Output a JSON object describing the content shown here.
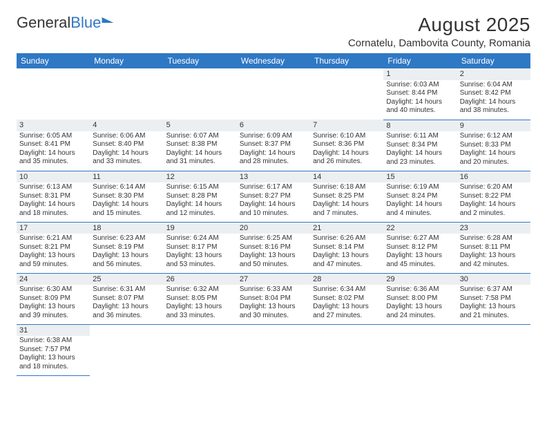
{
  "logo": {
    "part1": "General",
    "part2": "Blue"
  },
  "title": "August 2025",
  "location": "Cornatelu, Dambovita County, Romania",
  "colors": {
    "header_bg": "#2f78c4",
    "header_fg": "#ffffff",
    "shade_bg": "#eceff1",
    "rule": "#2f78c4"
  },
  "daynames": [
    "Sunday",
    "Monday",
    "Tuesday",
    "Wednesday",
    "Thursday",
    "Friday",
    "Saturday"
  ],
  "weeks": [
    [
      null,
      null,
      null,
      null,
      null,
      {
        "n": "1",
        "sr": "Sunrise: 6:03 AM",
        "ss": "Sunset: 8:44 PM",
        "d1": "Daylight: 14 hours",
        "d2": "and 40 minutes."
      },
      {
        "n": "2",
        "sr": "Sunrise: 6:04 AM",
        "ss": "Sunset: 8:42 PM",
        "d1": "Daylight: 14 hours",
        "d2": "and 38 minutes."
      }
    ],
    [
      {
        "n": "3",
        "sr": "Sunrise: 6:05 AM",
        "ss": "Sunset: 8:41 PM",
        "d1": "Daylight: 14 hours",
        "d2": "and 35 minutes."
      },
      {
        "n": "4",
        "sr": "Sunrise: 6:06 AM",
        "ss": "Sunset: 8:40 PM",
        "d1": "Daylight: 14 hours",
        "d2": "and 33 minutes."
      },
      {
        "n": "5",
        "sr": "Sunrise: 6:07 AM",
        "ss": "Sunset: 8:38 PM",
        "d1": "Daylight: 14 hours",
        "d2": "and 31 minutes."
      },
      {
        "n": "6",
        "sr": "Sunrise: 6:09 AM",
        "ss": "Sunset: 8:37 PM",
        "d1": "Daylight: 14 hours",
        "d2": "and 28 minutes."
      },
      {
        "n": "7",
        "sr": "Sunrise: 6:10 AM",
        "ss": "Sunset: 8:36 PM",
        "d1": "Daylight: 14 hours",
        "d2": "and 26 minutes."
      },
      {
        "n": "8",
        "sr": "Sunrise: 6:11 AM",
        "ss": "Sunset: 8:34 PM",
        "d1": "Daylight: 14 hours",
        "d2": "and 23 minutes."
      },
      {
        "n": "9",
        "sr": "Sunrise: 6:12 AM",
        "ss": "Sunset: 8:33 PM",
        "d1": "Daylight: 14 hours",
        "d2": "and 20 minutes."
      }
    ],
    [
      {
        "n": "10",
        "sr": "Sunrise: 6:13 AM",
        "ss": "Sunset: 8:31 PM",
        "d1": "Daylight: 14 hours",
        "d2": "and 18 minutes."
      },
      {
        "n": "11",
        "sr": "Sunrise: 6:14 AM",
        "ss": "Sunset: 8:30 PM",
        "d1": "Daylight: 14 hours",
        "d2": "and 15 minutes."
      },
      {
        "n": "12",
        "sr": "Sunrise: 6:15 AM",
        "ss": "Sunset: 8:28 PM",
        "d1": "Daylight: 14 hours",
        "d2": "and 12 minutes."
      },
      {
        "n": "13",
        "sr": "Sunrise: 6:17 AM",
        "ss": "Sunset: 8:27 PM",
        "d1": "Daylight: 14 hours",
        "d2": "and 10 minutes."
      },
      {
        "n": "14",
        "sr": "Sunrise: 6:18 AM",
        "ss": "Sunset: 8:25 PM",
        "d1": "Daylight: 14 hours",
        "d2": "and 7 minutes."
      },
      {
        "n": "15",
        "sr": "Sunrise: 6:19 AM",
        "ss": "Sunset: 8:24 PM",
        "d1": "Daylight: 14 hours",
        "d2": "and 4 minutes."
      },
      {
        "n": "16",
        "sr": "Sunrise: 6:20 AM",
        "ss": "Sunset: 8:22 PM",
        "d1": "Daylight: 14 hours",
        "d2": "and 2 minutes."
      }
    ],
    [
      {
        "n": "17",
        "sr": "Sunrise: 6:21 AM",
        "ss": "Sunset: 8:21 PM",
        "d1": "Daylight: 13 hours",
        "d2": "and 59 minutes."
      },
      {
        "n": "18",
        "sr": "Sunrise: 6:23 AM",
        "ss": "Sunset: 8:19 PM",
        "d1": "Daylight: 13 hours",
        "d2": "and 56 minutes."
      },
      {
        "n": "19",
        "sr": "Sunrise: 6:24 AM",
        "ss": "Sunset: 8:17 PM",
        "d1": "Daylight: 13 hours",
        "d2": "and 53 minutes."
      },
      {
        "n": "20",
        "sr": "Sunrise: 6:25 AM",
        "ss": "Sunset: 8:16 PM",
        "d1": "Daylight: 13 hours",
        "d2": "and 50 minutes."
      },
      {
        "n": "21",
        "sr": "Sunrise: 6:26 AM",
        "ss": "Sunset: 8:14 PM",
        "d1": "Daylight: 13 hours",
        "d2": "and 47 minutes."
      },
      {
        "n": "22",
        "sr": "Sunrise: 6:27 AM",
        "ss": "Sunset: 8:12 PM",
        "d1": "Daylight: 13 hours",
        "d2": "and 45 minutes."
      },
      {
        "n": "23",
        "sr": "Sunrise: 6:28 AM",
        "ss": "Sunset: 8:11 PM",
        "d1": "Daylight: 13 hours",
        "d2": "and 42 minutes."
      }
    ],
    [
      {
        "n": "24",
        "sr": "Sunrise: 6:30 AM",
        "ss": "Sunset: 8:09 PM",
        "d1": "Daylight: 13 hours",
        "d2": "and 39 minutes."
      },
      {
        "n": "25",
        "sr": "Sunrise: 6:31 AM",
        "ss": "Sunset: 8:07 PM",
        "d1": "Daylight: 13 hours",
        "d2": "and 36 minutes."
      },
      {
        "n": "26",
        "sr": "Sunrise: 6:32 AM",
        "ss": "Sunset: 8:05 PM",
        "d1": "Daylight: 13 hours",
        "d2": "and 33 minutes."
      },
      {
        "n": "27",
        "sr": "Sunrise: 6:33 AM",
        "ss": "Sunset: 8:04 PM",
        "d1": "Daylight: 13 hours",
        "d2": "and 30 minutes."
      },
      {
        "n": "28",
        "sr": "Sunrise: 6:34 AM",
        "ss": "Sunset: 8:02 PM",
        "d1": "Daylight: 13 hours",
        "d2": "and 27 minutes."
      },
      {
        "n": "29",
        "sr": "Sunrise: 6:36 AM",
        "ss": "Sunset: 8:00 PM",
        "d1": "Daylight: 13 hours",
        "d2": "and 24 minutes."
      },
      {
        "n": "30",
        "sr": "Sunrise: 6:37 AM",
        "ss": "Sunset: 7:58 PM",
        "d1": "Daylight: 13 hours",
        "d2": "and 21 minutes."
      }
    ],
    [
      {
        "n": "31",
        "sr": "Sunrise: 6:38 AM",
        "ss": "Sunset: 7:57 PM",
        "d1": "Daylight: 13 hours",
        "d2": "and 18 minutes."
      },
      null,
      null,
      null,
      null,
      null,
      null
    ]
  ]
}
